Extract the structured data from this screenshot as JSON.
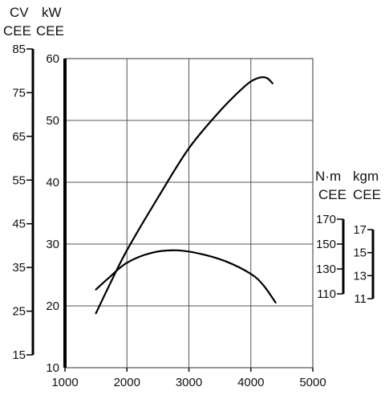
{
  "chart_data": {
    "type": "line",
    "x_ticks": [
      "1000",
      "2000",
      "3000",
      "4000",
      "5000"
    ],
    "xlim": [
      1000,
      5000
    ],
    "axes": {
      "cv": {
        "unit": "CV",
        "sub": "CEE",
        "ticks": [
          "85",
          "75",
          "65",
          "55",
          "45",
          "35",
          "25",
          "15"
        ],
        "range": [
          15,
          85
        ]
      },
      "kw": {
        "unit": "kW",
        "sub": "CEE",
        "ticks": [
          "60",
          "50",
          "40",
          "30",
          "20",
          "10"
        ],
        "range": [
          10,
          60
        ]
      },
      "nm": {
        "unit": "N·m",
        "sub": "CEE",
        "ticks": [
          "170",
          "150",
          "130",
          "110"
        ],
        "range": [
          110,
          170
        ]
      },
      "kgm": {
        "unit": "kgm",
        "sub": "CEE",
        "ticks": [
          "17",
          "15",
          "13",
          "11"
        ],
        "range": [
          11,
          17
        ]
      }
    },
    "series": [
      {
        "kind": "power",
        "axis": "kw",
        "points": [
          [
            1500,
            18.8
          ],
          [
            1700,
            23
          ],
          [
            2000,
            29
          ],
          [
            2500,
            37.5
          ],
          [
            3000,
            45.5
          ],
          [
            3500,
            51.5
          ],
          [
            3900,
            55.5
          ],
          [
            4100,
            56.8
          ],
          [
            4250,
            56.9
          ],
          [
            4350,
            56
          ]
        ]
      },
      {
        "kind": "torque",
        "axis": "nm",
        "points": [
          [
            1500,
            113.5
          ],
          [
            1700,
            122.5
          ],
          [
            2000,
            135
          ],
          [
            2400,
            143
          ],
          [
            2800,
            145
          ],
          [
            3200,
            142
          ],
          [
            3600,
            136
          ],
          [
            4000,
            126
          ],
          [
            4200,
            117
          ],
          [
            4400,
            103
          ]
        ]
      }
    ],
    "grid": true
  }
}
